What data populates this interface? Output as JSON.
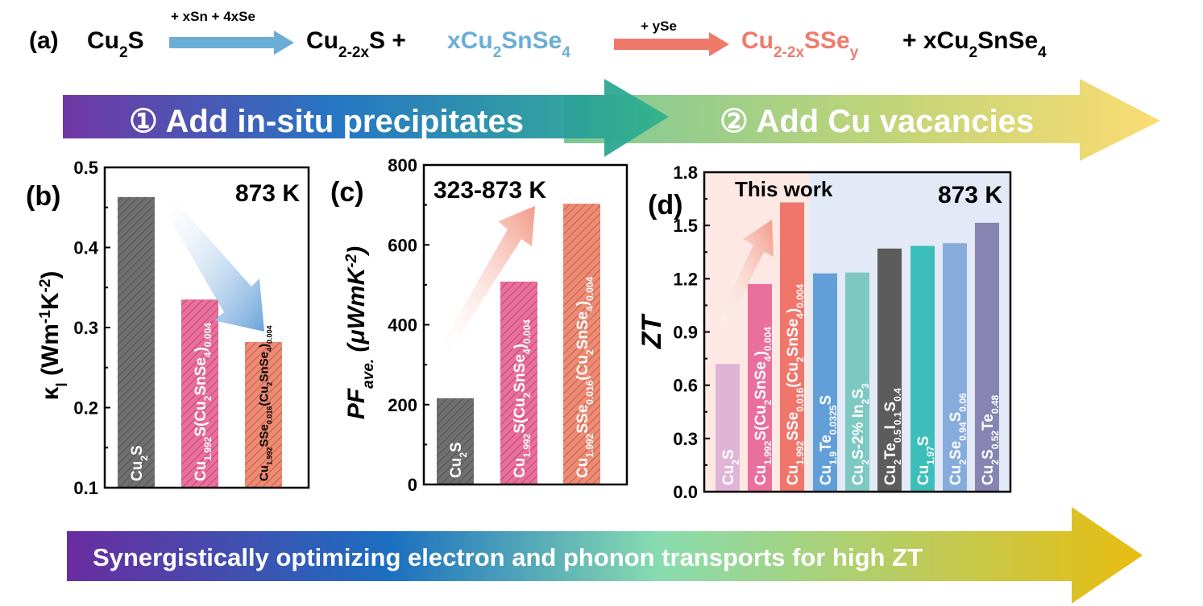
{
  "scheme": {
    "label": "(a)",
    "reactant": "Cu_{2}S",
    "step1_reagent": "+ xSn + 4xSe",
    "intermediate_a": "Cu_{2-2x}S +",
    "intermediate_b": "xCu_{2}SnSe_{4}",
    "step2_reagent": "+ ySe",
    "product_a": "Cu_{2-2x}SSe_{y}",
    "product_b": "+ xCu_{2}SnSe_{4}",
    "colors": {
      "blue": "#6aaed6",
      "red": "#f07a6a"
    }
  },
  "banners": {
    "step1": "① Add in-situ precipitates",
    "step2": "② Add Cu vacancies",
    "bottom": "Synergistically optimizing electron and phonon transports for high ZT"
  },
  "chart_data": [
    {
      "panel": "(b)",
      "type": "bar",
      "annotation": "873 K",
      "ylabel": "κ_{l} (Wm^{-1}K^{-2})",
      "ylim": [
        0.1,
        0.5
      ],
      "yticks": [
        "0.1",
        "0.2",
        "0.3",
        "0.4",
        "0.5"
      ],
      "categories": [
        "Cu_{2}S",
        "Cu_{1.992}S(Cu_{2}SnSe_{4})_{0.004}",
        "Cu_{1.992}SSe_{0.016}(Cu_{2}SnSe_{4})_{0.004}"
      ],
      "values": [
        0.463,
        0.335,
        0.282
      ],
      "colors": [
        "#6f6f6f",
        "#ec6e9c",
        "#f08a72"
      ],
      "hatched": true,
      "trend_arrow": "down"
    },
    {
      "panel": "(c)",
      "type": "bar",
      "annotation": "323-873 K",
      "ylabel": "PF_{ave.} (μWmK^{-2})",
      "ylim": [
        0,
        800
      ],
      "yticks": [
        "0",
        "200",
        "400",
        "600",
        "800"
      ],
      "categories": [
        "Cu_{2}S",
        "Cu_{1.992}S(Cu_{2}SnSe_{4})_{0.004}",
        "Cu_{1.992}SSe_{0.016}(Cu_{2}SnSe_{4})_{0.004}"
      ],
      "values": [
        216,
        508,
        703
      ],
      "colors": [
        "#6f6f6f",
        "#ec6e9c",
        "#f08a72"
      ],
      "hatched": true,
      "trend_arrow": "up"
    },
    {
      "panel": "(d)",
      "type": "bar",
      "annotation": "873 K",
      "region_label": "This work",
      "ylabel": "ZT",
      "ylim": [
        0,
        1.8
      ],
      "yticks": [
        "0.0",
        "0.3",
        "0.6",
        "0.9",
        "1.2",
        "1.5",
        "1.8"
      ],
      "categories": [
        "Cu_{2}S",
        "Cu_{1.992}S(Cu_{2}SnSe_{4})_{0.004}",
        "Cu_{1.992}SSe_{0.016}(Cu_{2}SnSe_{4})_{0.004}",
        "Cu_{1.9}Te_{0.0325}S",
        "Cu_{2}S-2% In_{2}S_{3}",
        "Cu_{2}Te_{0.5}I_{0.1}S_{0.4}",
        "Cu_{1.97}S",
        "Cu_{2}Se_{0.94}S_{0.06}",
        "Cu_{2}S_{0.52}Te_{0.48}"
      ],
      "values": [
        0.72,
        1.17,
        1.63,
        1.23,
        1.235,
        1.37,
        1.385,
        1.4,
        1.515
      ],
      "colors": [
        "#e0b4d6",
        "#e96f9d",
        "#f0766c",
        "#629fd8",
        "#7ec8c2",
        "#5c5c5c",
        "#3cbfba",
        "#86acdc",
        "#8784b2"
      ],
      "region_colors": {
        "this_work": "#fde8e3",
        "others": "#e3e9f7"
      },
      "trend_arrow": "up"
    }
  ]
}
